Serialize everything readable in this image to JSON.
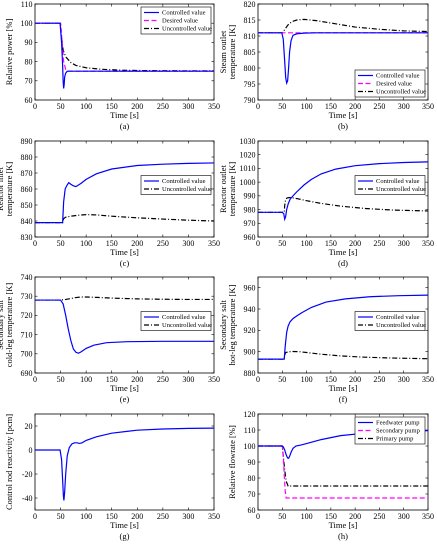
{
  "chart_data": [
    {
      "type": "line",
      "panel_label": "(a)",
      "xlabel": "Time [s]",
      "ylabel": [
        "Relative power [%]"
      ],
      "xlim": [
        0,
        350
      ],
      "ylim": [
        60,
        110
      ],
      "xticks": [
        0,
        50,
        100,
        150,
        200,
        250,
        300,
        350
      ],
      "yticks": [
        60,
        70,
        80,
        90,
        100,
        110
      ],
      "legend_position": "top-right",
      "series": [
        {
          "name": "Controlled value",
          "color": "#0000ff",
          "dash": "solid",
          "x": [
            0,
            49,
            52,
            54,
            55,
            56,
            57,
            58,
            60,
            63,
            70,
            90,
            150,
            250,
            350
          ],
          "y": [
            100,
            100,
            90,
            78,
            70,
            66,
            68,
            72,
            74,
            75,
            75,
            75,
            75,
            75,
            75
          ]
        },
        {
          "name": "Desired value",
          "color": "#ff00ff",
          "dash": "dashed",
          "x": [
            0,
            50,
            53,
            56,
            60,
            65,
            350
          ],
          "y": [
            100,
            100,
            90,
            80,
            76,
            75,
            75
          ]
        },
        {
          "name": "Uncontrolled value",
          "color": "#000000",
          "dash": "dashdot",
          "x": [
            0,
            50,
            52,
            55,
            60,
            70,
            80,
            100,
            130,
            170,
            220,
            300,
            350
          ],
          "y": [
            100,
            100,
            92,
            86,
            82.5,
            79.5,
            78,
            76.8,
            76,
            75.5,
            75.3,
            75.2,
            75.2
          ]
        }
      ]
    },
    {
      "type": "line",
      "panel_label": "(b)",
      "xlabel": "Time [s]",
      "ylabel": [
        "Steam outlet",
        "temperature [K]"
      ],
      "xlim": [
        0,
        350
      ],
      "ylim": [
        790,
        820
      ],
      "xticks": [
        0,
        50,
        100,
        150,
        200,
        250,
        300,
        350
      ],
      "yticks": [
        790,
        795,
        800,
        805,
        810,
        815,
        820
      ],
      "legend_position": "bottom-right",
      "series": [
        {
          "name": "Controlled value",
          "color": "#0000ff",
          "dash": "solid",
          "x": [
            0,
            49,
            52,
            55,
            57,
            59,
            61,
            63,
            65,
            68,
            72,
            80,
            95,
            120,
            160,
            350
          ],
          "y": [
            811,
            811,
            809,
            802,
            797,
            795.3,
            796,
            800,
            805,
            808.5,
            810.2,
            810.7,
            810.9,
            811,
            811,
            811
          ]
        },
        {
          "name": "Desired value",
          "color": "#ff00ff",
          "dash": "dashed",
          "x": [
            0,
            350
          ],
          "y": [
            811,
            811
          ]
        },
        {
          "name": "Uncontrolled value",
          "color": "#000000",
          "dash": "dashdot",
          "x": [
            0,
            50,
            55,
            62,
            70,
            80,
            95,
            120,
            160,
            200,
            250,
            300,
            350
          ],
          "y": [
            811,
            811,
            812,
            813.5,
            814.5,
            815,
            815.2,
            814.8,
            813.8,
            812.8,
            812.1,
            811.6,
            811.4
          ]
        }
      ]
    },
    {
      "type": "line",
      "panel_label": "(c)",
      "xlabel": "Time [s]",
      "ylabel": [
        "Reactor inlet",
        "temperature [K]"
      ],
      "xlim": [
        0,
        350
      ],
      "ylim": [
        830,
        890
      ],
      "xticks": [
        0,
        50,
        100,
        150,
        200,
        250,
        300,
        350
      ],
      "yticks": [
        830,
        840,
        850,
        860,
        870,
        880,
        890
      ],
      "legend_position": "center-right",
      "series": [
        {
          "name": "Controlled value",
          "color": "#0000ff",
          "dash": "solid",
          "x": [
            0,
            54,
            56,
            59,
            62,
            66,
            70,
            75,
            80,
            90,
            100,
            120,
            150,
            200,
            250,
            300,
            350
          ],
          "y": [
            839,
            839,
            852,
            860,
            862,
            864,
            863,
            862,
            861.5,
            863.5,
            866,
            869.5,
            872.5,
            874.7,
            875.5,
            876,
            876.3
          ]
        },
        {
          "name": "Uncontrolled value",
          "color": "#000000",
          "dash": "dashdot",
          "x": [
            0,
            54,
            56,
            60,
            70,
            85,
            100,
            120,
            150,
            200,
            250,
            300,
            350
          ],
          "y": [
            839,
            839,
            841.5,
            842.4,
            843,
            843.6,
            844,
            843.8,
            843,
            842,
            841.2,
            840.5,
            840
          ]
        }
      ]
    },
    {
      "type": "line",
      "panel_label": "(d)",
      "xlabel": "Time [s]",
      "ylabel": [
        "Reactor outlet",
        "temperature [K]"
      ],
      "xlim": [
        0,
        350
      ],
      "ylim": [
        960,
        1030
      ],
      "xticks": [
        0,
        50,
        100,
        150,
        200,
        250,
        300,
        350
      ],
      "yticks": [
        960,
        970,
        980,
        990,
        1000,
        1010,
        1020,
        1030
      ],
      "legend_position": "center-right",
      "series": [
        {
          "name": "Controlled value",
          "color": "#0000ff",
          "dash": "solid",
          "x": [
            0,
            50,
            53,
            55,
            57,
            59,
            62,
            66,
            72,
            80,
            95,
            110,
            130,
            160,
            200,
            250,
            300,
            350
          ],
          "y": [
            978,
            978,
            977,
            973,
            975,
            980,
            984,
            987.5,
            990,
            993,
            998,
            1002,
            1006,
            1009.5,
            1012,
            1013.5,
            1014.3,
            1014.8
          ]
        },
        {
          "name": "Uncontrolled value",
          "color": "#000000",
          "dash": "dashdot",
          "x": [
            0,
            54,
            55,
            57,
            60,
            65,
            70,
            80,
            100,
            130,
            170,
            220,
            280,
            350
          ],
          "y": [
            978,
            978,
            983,
            987.5,
            988.5,
            988.8,
            988.6,
            988,
            986.5,
            984.5,
            982.5,
            980.8,
            979.6,
            979
          ]
        }
      ]
    },
    {
      "type": "line",
      "panel_label": "(e)",
      "xlabel": "Time [s]",
      "ylabel": [
        "Secondary salt",
        "cold-leg temperature [K]"
      ],
      "xlim": [
        0,
        350
      ],
      "ylim": [
        690,
        740
      ],
      "xticks": [
        0,
        50,
        100,
        150,
        200,
        250,
        300,
        350
      ],
      "yticks": [
        690,
        700,
        710,
        720,
        730,
        740
      ],
      "legend_position": "center-right",
      "series": [
        {
          "name": "Controlled value",
          "color": "#0000ff",
          "dash": "solid",
          "x": [
            0,
            50,
            55,
            60,
            65,
            70,
            75,
            80,
            85,
            90,
            100,
            115,
            140,
            180,
            250,
            350
          ],
          "y": [
            728,
            728,
            726,
            720,
            713,
            707,
            702.5,
            700.8,
            700.3,
            701,
            702.8,
            704.5,
            705.8,
            706.3,
            706.5,
            706.5
          ]
        },
        {
          "name": "Uncontrolled value",
          "color": "#000000",
          "dash": "dashdot",
          "x": [
            0,
            50,
            60,
            70,
            80,
            90,
            100,
            120,
            150,
            200,
            250,
            300,
            350
          ],
          "y": [
            728,
            728,
            728.3,
            728.8,
            729.3,
            729.6,
            729.6,
            729.4,
            729,
            728.6,
            728.4,
            728.3,
            728.3
          ]
        }
      ]
    },
    {
      "type": "line",
      "panel_label": "(f)",
      "xlabel": "Time [s]",
      "ylabel": [
        "Secondary salt",
        "hot-leg temperature [K]"
      ],
      "xlim": [
        0,
        350
      ],
      "ylim": [
        880,
        970
      ],
      "xticks": [
        0,
        50,
        100,
        150,
        200,
        250,
        300,
        350
      ],
      "yticks": [
        880,
        900,
        920,
        940,
        960
      ],
      "legend_position": "center-right",
      "series": [
        {
          "name": "Controlled value",
          "color": "#0000ff",
          "dash": "solid",
          "x": [
            0,
            54,
            56,
            59,
            62,
            66,
            72,
            80,
            90,
            110,
            140,
            180,
            230,
            290,
            350
          ],
          "y": [
            893,
            893,
            905,
            918,
            924,
            928,
            931,
            933.5,
            936.5,
            941.5,
            946.5,
            949.5,
            951.5,
            952.5,
            953
          ]
        },
        {
          "name": "Uncontrolled value",
          "color": "#000000",
          "dash": "dashdot",
          "x": [
            0,
            54,
            55,
            57,
            62,
            70,
            85,
            100,
            130,
            170,
            220,
            280,
            350
          ],
          "y": [
            893,
            893,
            897,
            899.2,
            899.8,
            900.2,
            900,
            899.2,
            897.6,
            896,
            894.8,
            894,
            893.4
          ]
        }
      ]
    },
    {
      "type": "line",
      "panel_label": "(g)",
      "xlabel": "Time [s]",
      "ylabel": [
        "Control rod reactivity [pcm]"
      ],
      "xlim": [
        0,
        350
      ],
      "ylim": [
        -50,
        30
      ],
      "xticks": [
        0,
        50,
        100,
        150,
        200,
        250,
        300,
        350
      ],
      "yticks": [
        -40,
        -20,
        0,
        20
      ],
      "series": [
        {
          "name": "",
          "color": "#0000ff",
          "dash": "solid",
          "x": [
            0,
            49,
            52,
            54,
            55.5,
            56.5,
            58,
            60,
            63,
            67,
            72,
            77,
            82,
            87,
            92,
            100,
            120,
            150,
            200,
            250,
            300,
            350
          ],
          "y": [
            0,
            0,
            -8,
            -25,
            -38,
            -42,
            -35,
            -20,
            -5,
            2,
            5,
            6,
            6,
            5.5,
            6,
            8,
            11,
            14,
            16.5,
            17.5,
            18,
            18.2
          ]
        }
      ]
    },
    {
      "type": "line",
      "panel_label": "(h)",
      "xlabel": "Time [s]",
      "ylabel": [
        "Relative flowrate [%]"
      ],
      "xlim": [
        0,
        350
      ],
      "ylim": [
        60,
        120
      ],
      "xticks": [
        0,
        50,
        100,
        150,
        200,
        250,
        300,
        350
      ],
      "yticks": [
        60,
        70,
        80,
        90,
        100,
        110,
        120
      ],
      "legend_position": "top-right",
      "series": [
        {
          "name": "Feedwater pump",
          "color": "#0000ff",
          "dash": "solid",
          "x": [
            0,
            49,
            52,
            55,
            58,
            61,
            63,
            65,
            68,
            72,
            78,
            88,
            100,
            130,
            170,
            220,
            280,
            350
          ],
          "y": [
            100,
            100,
            99.5,
            97.5,
            94.5,
            92.5,
            92.3,
            93.5,
            96,
            98.5,
            100,
            100.6,
            101.5,
            104,
            106.5,
            108,
            109,
            109.6
          ]
        },
        {
          "name": "Secondary pump",
          "color": "#ff00ff",
          "dash": "dashed",
          "x": [
            0,
            50,
            52,
            54,
            56,
            58,
            350
          ],
          "y": [
            100,
            100,
            93,
            82,
            72,
            67.5,
            67.5
          ]
        },
        {
          "name": "Primary pump",
          "color": "#000000",
          "dash": "dashdot",
          "x": [
            0,
            50,
            52,
            55,
            58,
            62,
            350
          ],
          "y": [
            100,
            100,
            94,
            85,
            78,
            75,
            75
          ]
        }
      ]
    }
  ]
}
